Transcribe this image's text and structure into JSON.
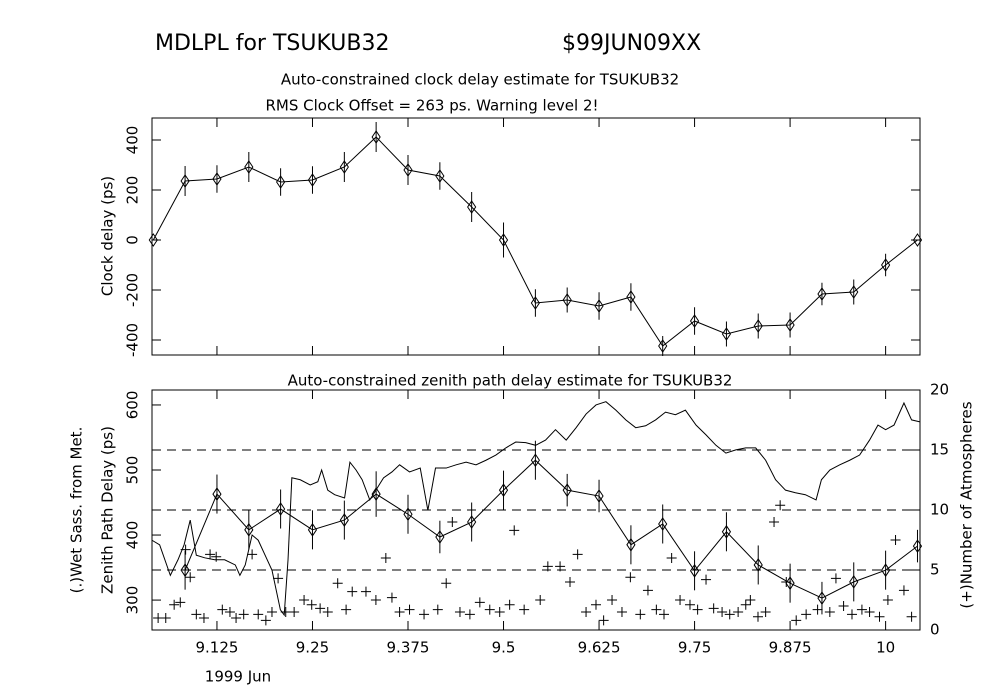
{
  "header": {
    "title": "MDLPL for TSUKUB32",
    "experiment": "$99JUN09XX"
  },
  "chart_data": [
    {
      "type": "line",
      "title": "Auto-constrained clock delay estimate for TSUKUB32",
      "subtitle": "RMS Clock Offset = 263 ps. Warning level 2!",
      "ylabel": "Clock delay (ps)",
      "xlim": [
        9.04,
        10.045
      ],
      "ylim": [
        -460,
        488
      ],
      "yticks": [
        -400,
        -200,
        0,
        200,
        400
      ],
      "series": [
        {
          "color": "#000000",
          "line": true,
          "marker": "diamond",
          "x": [
            9.0417,
            9.0833,
            9.125,
            9.1667,
            9.2083,
            9.25,
            9.2917,
            9.3333,
            9.375,
            9.4167,
            9.4583,
            9.5,
            9.5417,
            9.5833,
            9.625,
            9.6667,
            9.7083,
            9.75,
            9.7917,
            9.8333,
            9.875,
            9.9167,
            9.9583,
            10,
            10.0417
          ],
          "values": [
            0,
            236,
            244,
            292,
            232,
            240,
            292,
            412,
            280,
            256,
            132,
            0,
            -252,
            -240,
            -264,
            -228,
            -424,
            -324,
            -376,
            -344,
            -340,
            -216,
            -208,
            -100,
            0
          ],
          "errors": [
            0,
            60,
            55,
            60,
            55,
            55,
            60,
            60,
            60,
            55,
            60,
            70,
            55,
            50,
            55,
            55,
            40,
            55,
            50,
            50,
            50,
            45,
            50,
            45,
            0
          ]
        }
      ]
    },
    {
      "type": "line",
      "title": "Auto-constrained zenith path delay estimate for TSUKUB32",
      "ylabel": [
        "(.)Wet Sass. from Met.",
        "Zenith Path Delay (ps)"
      ],
      "y2label": "(+)Number of Atmospheres",
      "xlabel": "1999 Jun",
      "xlim": [
        9.04,
        10.045
      ],
      "xticks": [
        9.125,
        9.25,
        9.375,
        9.5,
        9.625,
        9.75,
        9.875,
        10
      ],
      "ylim": [
        254,
        623
      ],
      "yticks": [
        300,
        400,
        500,
        600
      ],
      "y2lim": [
        0,
        20
      ],
      "y2ticks": [
        0,
        5,
        10,
        15,
        20
      ],
      "y2_reference_lines": [
        5,
        10,
        15
      ],
      "series": [
        {
          "color": "#000000",
          "line": true,
          "marker": null,
          "x": [
            9.04,
            9.05,
            9.064,
            9.074,
            9.082,
            9.09,
            9.098,
            9.109,
            9.122,
            9.135,
            9.149,
            9.155,
            9.162,
            9.171,
            9.179,
            9.188,
            9.197,
            9.208,
            9.213,
            9.218,
            9.223,
            9.234,
            9.247,
            9.257,
            9.262,
            9.27,
            9.279,
            9.292,
            9.299,
            9.307,
            9.315,
            9.325,
            9.333,
            9.343,
            9.354,
            9.364,
            9.377,
            9.391,
            9.401,
            9.411,
            9.425,
            9.438,
            9.451,
            9.464,
            9.477,
            9.49,
            9.503,
            9.516,
            9.529,
            9.542,
            9.555,
            9.568,
            9.582,
            9.595,
            9.608,
            9.621,
            9.634,
            9.647,
            9.66,
            9.673,
            9.686,
            9.699,
            9.712,
            9.725,
            9.738,
            9.752,
            9.765,
            9.778,
            9.791,
            9.804,
            9.817,
            9.83,
            9.843,
            9.856,
            9.869,
            9.882,
            9.895,
            9.909,
            9.916,
            9.927,
            9.94,
            9.953,
            9.966,
            9.979,
            9.99,
            10.0,
            10.011,
            10.024,
            10.034,
            10.045
          ],
          "values": [
            392,
            385,
            338,
            362,
            385,
            423,
            369,
            365,
            362,
            362,
            354,
            338,
            354,
            400,
            392,
            369,
            346,
            285,
            277,
            362,
            488,
            485,
            477,
            482,
            500,
            469,
            462,
            457,
            512,
            500,
            485,
            454,
            469,
            488,
            497,
            508,
            497,
            503,
            438,
            503,
            503,
            508,
            512,
            508,
            515,
            523,
            534,
            543,
            542,
            538,
            546,
            562,
            546,
            565,
            586,
            600,
            605,
            592,
            577,
            565,
            568,
            577,
            589,
            585,
            592,
            569,
            554,
            538,
            526,
            531,
            534,
            534,
            515,
            485,
            469,
            465,
            462,
            454,
            485,
            500,
            508,
            515,
            523,
            546,
            569,
            562,
            569,
            603,
            577,
            574
          ]
        },
        {
          "color": "#000000",
          "line": true,
          "marker": "diamond",
          "x": [
            9.0833,
            9.125,
            9.1667,
            9.2083,
            9.25,
            9.2917,
            9.3333,
            9.375,
            9.4167,
            9.4583,
            9.5,
            9.5417,
            9.5833,
            9.625,
            9.6667,
            9.7083,
            9.75,
            9.7917,
            9.8333,
            9.875,
            9.9167,
            9.9583,
            10,
            10.0417
          ],
          "values": [
            346,
            463,
            408,
            440,
            408,
            423,
            463,
            432,
            397,
            420,
            469,
            515,
            469,
            460,
            385,
            417,
            345,
            405,
            354,
            326,
            303,
            328,
            346,
            383
          ],
          "errors": [
            30,
            30,
            30,
            30,
            30,
            30,
            35,
            30,
            25,
            30,
            30,
            30,
            25,
            25,
            30,
            30,
            30,
            30,
            30,
            30,
            25,
            30,
            30,
            25
          ]
        },
        {
          "color": "#000000",
          "line": false,
          "marker": "plus",
          "axis": "y2",
          "x": [
            9.048,
            9.058,
            9.069,
            9.077,
            9.084,
            9.09,
            9.098,
            9.108,
            9.116,
            9.124,
            9.132,
            9.142,
            9.15,
            9.16,
            9.171,
            9.179,
            9.189,
            9.197,
            9.205,
            9.215,
            9.226,
            9.239,
            9.249,
            9.26,
            9.27,
            9.283,
            9.294,
            9.302,
            9.32,
            9.333,
            9.346,
            9.354,
            9.364,
            9.377,
            9.396,
            9.414,
            9.425,
            9.433,
            9.443,
            9.456,
            9.469,
            9.482,
            9.495,
            9.508,
            9.514,
            9.527,
            9.548,
            9.558,
            9.574,
            9.587,
            9.597,
            9.608,
            9.621,
            9.631,
            9.642,
            9.655,
            9.666,
            9.679,
            9.689,
            9.7,
            9.71,
            9.72,
            9.731,
            9.744,
            9.754,
            9.765,
            9.775,
            9.786,
            9.796,
            9.807,
            9.817,
            9.823,
            9.833,
            9.843,
            9.854,
            9.862,
            9.87,
            9.883,
            9.896,
            9.911,
            9.927,
            9.935,
            9.945,
            9.956,
            9.969,
            9.979,
            9.992,
            10.003,
            10.013,
            10.024,
            10.034
          ],
          "values": [
            1.0,
            1.0,
            2.1,
            2.3,
            6.7,
            4.4,
            1.3,
            1.0,
            6.3,
            6.1,
            1.7,
            1.5,
            1.0,
            1.3,
            6.3,
            1.3,
            0.8,
            1.5,
            4.3,
            1.5,
            1.5,
            2.5,
            2.1,
            1.8,
            1.5,
            3.9,
            1.7,
            3.2,
            3.2,
            2.5,
            6.0,
            2.7,
            1.5,
            1.7,
            1.3,
            1.7,
            3.9,
            9.0,
            1.5,
            1.3,
            2.3,
            1.7,
            1.5,
            2.1,
            8.3,
            1.7,
            2.5,
            5.3,
            5.3,
            4.0,
            6.3,
            1.5,
            2.1,
            0.8,
            2.5,
            1.5,
            4.4,
            1.3,
            3.3,
            1.7,
            1.3,
            6.0,
            2.5,
            2.1,
            1.7,
            4.2,
            1.8,
            1.5,
            1.3,
            1.5,
            2.1,
            2.5,
            1.1,
            1.5,
            9.0,
            10.4,
            4.0,
            0.8,
            1.3,
            1.7,
            1.5,
            4.3,
            2.0,
            1.3,
            1.7,
            1.5,
            1.1,
            2.5,
            7.5,
            3.3,
            1.1
          ]
        }
      ]
    }
  ]
}
